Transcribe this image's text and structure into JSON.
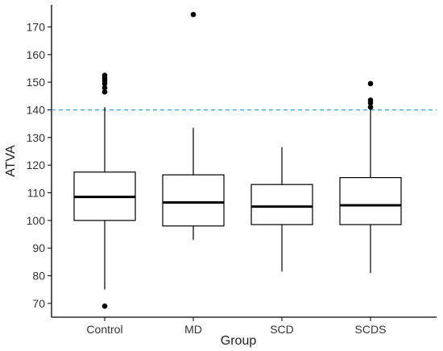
{
  "chart_data": {
    "type": "boxplot",
    "xlabel": "Group",
    "ylabel": "ATVA",
    "ylim": [
      65,
      178
    ],
    "yticks": [
      70,
      80,
      90,
      100,
      110,
      120,
      130,
      140,
      150,
      160,
      170
    ],
    "yticks_labels": [
      "70",
      "80",
      "90",
      "100",
      "110",
      "120",
      "130",
      "140",
      "150",
      "160",
      "170"
    ],
    "reference_line": {
      "y": 140,
      "color": "#2aa7c0",
      "style": "dashed"
    },
    "grid": false,
    "categories": [
      "Control",
      "MD",
      "SCD",
      "SCDS"
    ],
    "boxes": [
      {
        "group": "Control",
        "whisker_low": 75,
        "q1": 100,
        "median": 108.5,
        "q3": 117.5,
        "whisker_high": 141,
        "outliers": [
          69,
          146.5,
          148,
          149.5,
          150.5,
          151.5,
          152.5
        ]
      },
      {
        "group": "MD",
        "whisker_low": 93,
        "q1": 98,
        "median": 106.5,
        "q3": 116.5,
        "whisker_high": 133.5,
        "outliers": [
          174.5
        ]
      },
      {
        "group": "SCD",
        "whisker_low": 81.5,
        "q1": 98.5,
        "median": 105,
        "q3": 113,
        "whisker_high": 126.5,
        "outliers": []
      },
      {
        "group": "SCDS",
        "whisker_low": 81,
        "q1": 98.5,
        "median": 105.5,
        "q3": 115.5,
        "whisker_high": 140.5,
        "outliers": [
          141,
          142.5,
          143.5,
          149.5
        ]
      }
    ],
    "colors": {
      "box_fill": "#ffffff",
      "box_stroke": "#000000",
      "outlier": "#000000",
      "axis": "#000000"
    }
  }
}
